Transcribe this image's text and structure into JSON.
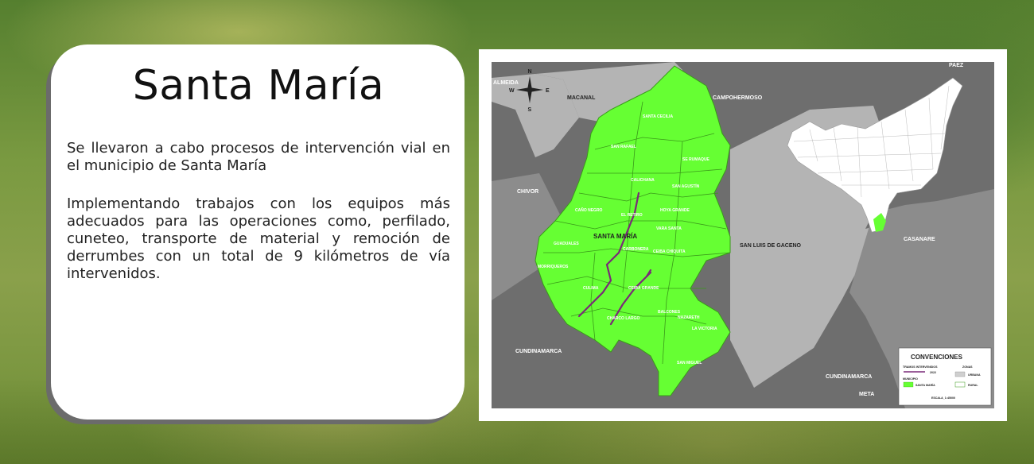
{
  "card": {
    "title": "Santa María",
    "paragraph1": "Se llevaron a cabo procesos de intervención vial en el municipio de Santa María",
    "paragraph2": "Implementando trabajos con los equipos más adecuados para las operaciones como, perfilado, cuneteo, transporte de material y remoción de derrumbes con un total de 9 kilómetros de vía intervenidos."
  },
  "map": {
    "compass": {
      "n": "N",
      "s": "S",
      "e": "E",
      "w": "W"
    },
    "neighbors": {
      "almeida": "ALMEIDA",
      "macanal": "MACANAL",
      "campohermoso": "CAMPOHERMOSO",
      "paez": "PAEZ",
      "chivor": "CHIVOR",
      "san_luis": "SAN LUIS DE GACENO",
      "casanare": "CASANARE",
      "cundinamarca_left": "CUNDINAMARCA",
      "cundinamarca_right": "CUNDINAMARCA",
      "meta": "META"
    },
    "municipality_label": "SANTA MARÍA",
    "veredas": {
      "santa_cecilia": "SANTA CECILIA",
      "san_rafael": "SAN RAFAEL",
      "rumaque": "SE RUMAQUE",
      "caldana": "CALICHANA",
      "san_agustin": "SAN AGUSTÍN",
      "cano_negro": "CAÑO NEGRO",
      "el_retiro": "EL RETIRO",
      "hoya_grande": "HOYA GRANDE",
      "vara_santa": "VARA SANTA",
      "guaduales": "GUADUALES",
      "carbonera": "CARBONERA",
      "ceiba_chiquita": "CEIBA CHIQUITA",
      "morriquito": "MORRIQUEROS",
      "culima": "CULIMA",
      "ceiba_grande": "CEIBA GRANDE",
      "balcones": "BALCONES",
      "nazareth": "NAZARETH",
      "charco_largo": "CHARCO LARGO",
      "la_victoria": "LA VICTORIA",
      "san_miguel": "SAN MIGUEL"
    },
    "legend": {
      "title": "CONVENCIONES",
      "tramos": "TRAMOS INTERVENIDOS",
      "year": "2022",
      "zonas": "ZONAS",
      "urbana": "URBANA",
      "rural": "RURAL",
      "municipio": "MUNICIPIO",
      "santa_maria": "SANTA MARÍA",
      "escala": "ESCALA_1:45000"
    },
    "colors": {
      "municipality": "#66ff33",
      "roads": "#7a2a78",
      "neighbor_dark": "#6e6e6e",
      "neighbor_mid": "#8c8c8c",
      "neighbor_light": "#b4b4b4"
    }
  }
}
